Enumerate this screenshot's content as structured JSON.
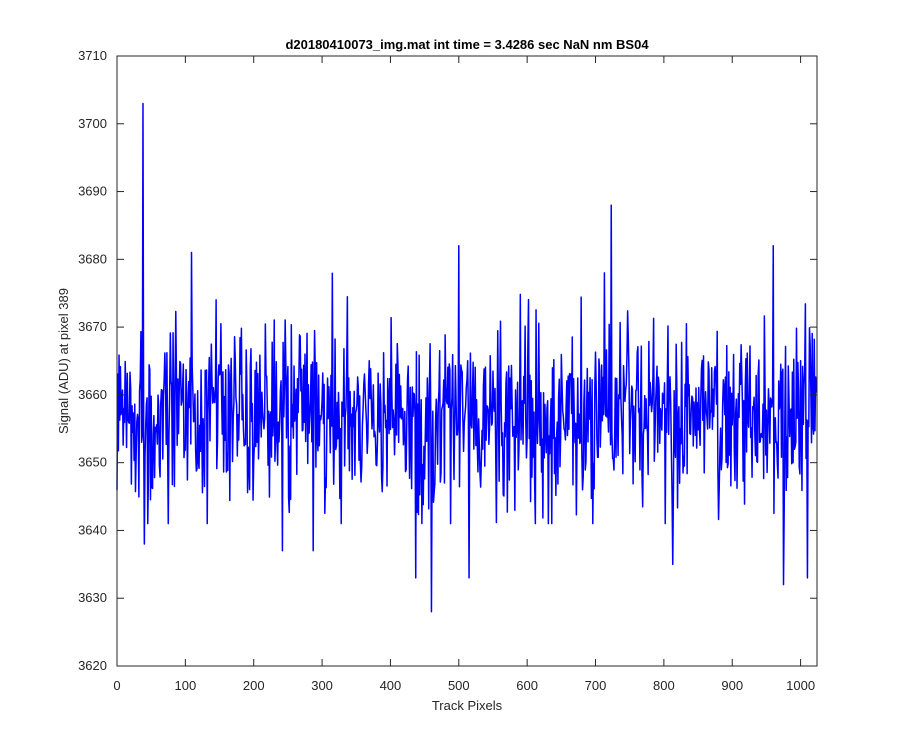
{
  "chart_data": {
    "type": "line",
    "title": "d20180410073_img.mat int time = 3.4286 sec  NaN nm BS04",
    "xlabel": "Track Pixels",
    "ylabel": "Signal (ADU) at pixel 389",
    "xlim": [
      0,
      1024
    ],
    "ylim": [
      3620,
      3710
    ],
    "xticks": [
      0,
      100,
      200,
      300,
      400,
      500,
      600,
      700,
      800,
      900,
      1000
    ],
    "yticks": [
      3620,
      3630,
      3640,
      3650,
      3660,
      3670,
      3680,
      3690,
      3700,
      3710
    ],
    "grid": false,
    "legend": "none",
    "colors": {
      "line": "#0000ff",
      "axes": "#262626",
      "background": "#ffffff"
    },
    "noise_model": {
      "n_points": 1024,
      "mean": 3657,
      "spread": 6.5
    },
    "notable_points": [
      {
        "x": 38,
        "y": 3703
      },
      {
        "x": 40,
        "y": 3638
      },
      {
        "x": 109,
        "y": 3681
      },
      {
        "x": 242,
        "y": 3637
      },
      {
        "x": 287,
        "y": 3637
      },
      {
        "x": 437,
        "y": 3633
      },
      {
        "x": 460,
        "y": 3628
      },
      {
        "x": 500,
        "y": 3682
      },
      {
        "x": 515,
        "y": 3633
      },
      {
        "x": 723,
        "y": 3688
      },
      {
        "x": 813,
        "y": 3635
      },
      {
        "x": 960,
        "y": 3682
      },
      {
        "x": 975,
        "y": 3632
      },
      {
        "x": 1010,
        "y": 3633
      }
    ]
  }
}
